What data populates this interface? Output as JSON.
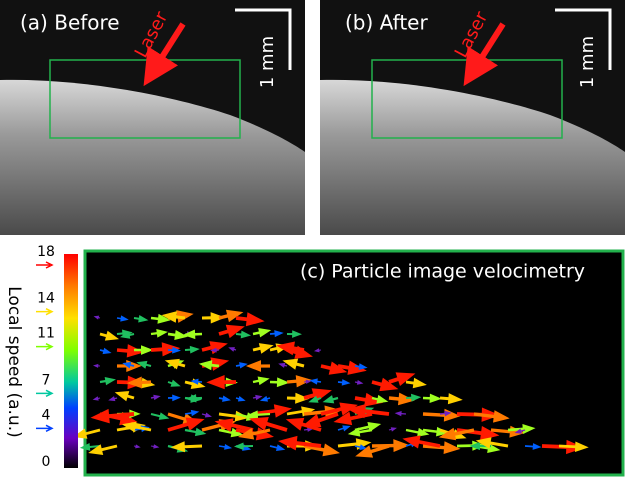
{
  "panels": [
    {
      "label": "(a) Before",
      "annotation": "Laser",
      "scale_bar": "1 mm"
    },
    {
      "label": "(b) After",
      "annotation": "Laser",
      "scale_bar": "1 mm"
    },
    {
      "label": "(c) Particle image velocimetry"
    }
  ],
  "colorbar": {
    "label": "Local speed (a.u.)",
    "ticks": [
      18,
      14,
      11,
      7,
      4,
      0
    ]
  }
}
